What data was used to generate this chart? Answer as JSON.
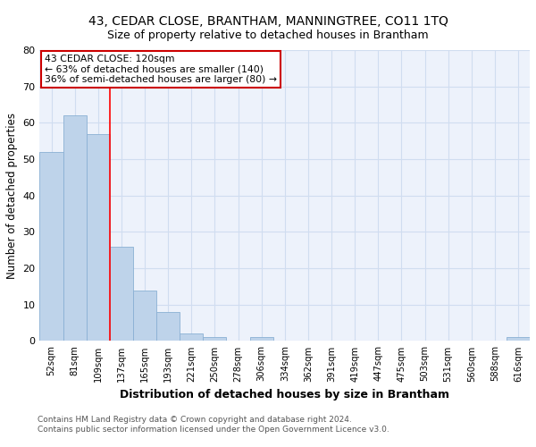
{
  "title": "43, CEDAR CLOSE, BRANTHAM, MANNINGTREE, CO11 1TQ",
  "subtitle": "Size of property relative to detached houses in Brantham",
  "xlabel": "Distribution of detached houses by size in Brantham",
  "ylabel": "Number of detached properties",
  "bar_labels": [
    "52sqm",
    "81sqm",
    "109sqm",
    "137sqm",
    "165sqm",
    "193sqm",
    "221sqm",
    "250sqm",
    "278sqm",
    "306sqm",
    "334sqm",
    "362sqm",
    "391sqm",
    "419sqm",
    "447sqm",
    "475sqm",
    "503sqm",
    "531sqm",
    "560sqm",
    "588sqm",
    "616sqm"
  ],
  "bar_values": [
    52,
    62,
    57,
    26,
    14,
    8,
    2,
    1,
    0,
    1,
    0,
    0,
    0,
    0,
    0,
    0,
    0,
    0,
    0,
    0,
    1
  ],
  "bar_color": "#bed3ea",
  "bar_edge_color": "#8ab0d4",
  "red_line_x": 2.5,
  "annotation_lines": [
    "43 CEDAR CLOSE: 120sqm",
    "← 63% of detached houses are smaller (140)",
    "36% of semi-detached houses are larger (80) →"
  ],
  "annotation_box_color": "#ffffff",
  "annotation_box_edge": "#cc0000",
  "grid_color": "#d0ddf0",
  "background_color": "#edf2fb",
  "ylim": [
    0,
    80
  ],
  "footer1": "Contains HM Land Registry data © Crown copyright and database right 2024.",
  "footer2": "Contains public sector information licensed under the Open Government Licence v3.0."
}
